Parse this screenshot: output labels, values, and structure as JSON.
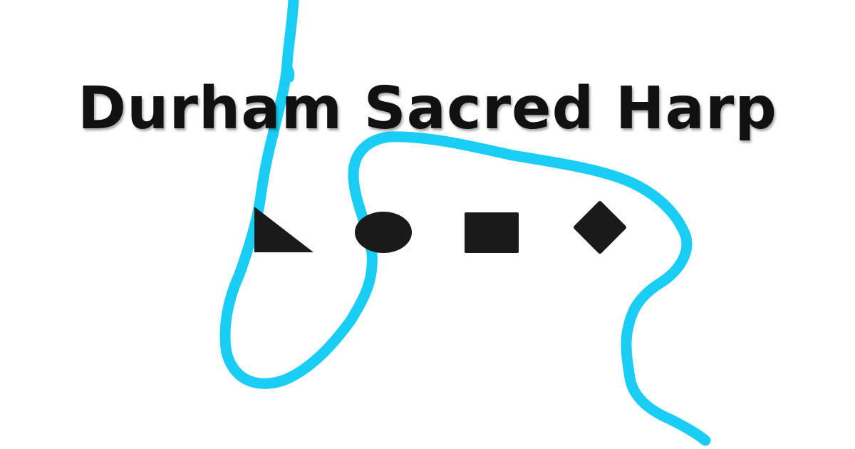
{
  "title": "Durham Sacred Harp",
  "colors": {
    "background": "#ffffff",
    "river": "#19cdf5",
    "title": "#111111",
    "shape_notes": "#1a1a1a"
  },
  "shape_notes": [
    "triangle-note-icon",
    "oval-note-icon",
    "square-note-icon",
    "diamond-note-icon"
  ]
}
